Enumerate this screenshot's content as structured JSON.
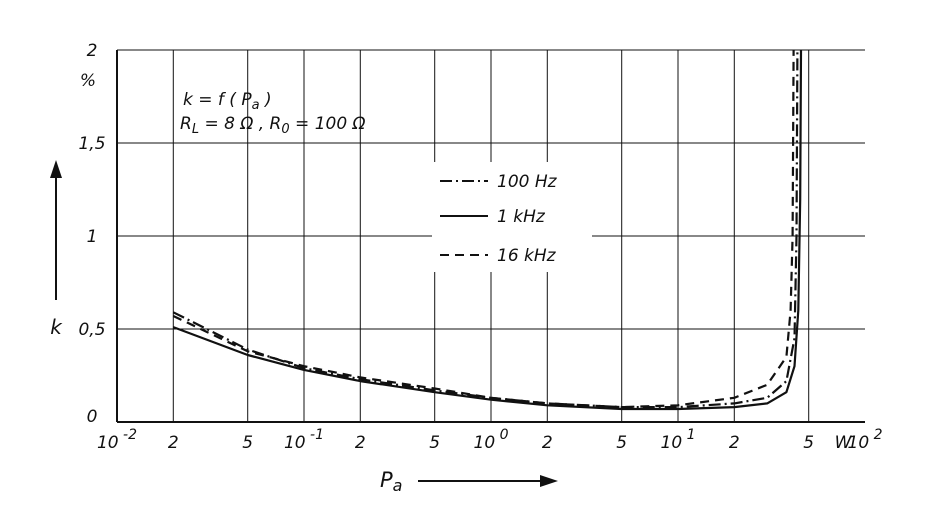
{
  "chart_data": {
    "type": "line",
    "x_scale": "log",
    "xlim": [
      0.01,
      100
    ],
    "ylim": [
      0,
      2
    ],
    "grid": true,
    "legend_position": "center",
    "ylabel": "k",
    "y_unit": "%",
    "xlabel": "Pa",
    "x_unit": "W",
    "annotations": [
      "k = f ( Pa )",
      "RL = 8 Ω , R0 = 100 Ω"
    ],
    "y_ticks": [
      "0",
      "0,5",
      "1",
      "1,5",
      "2"
    ],
    "x_ticks": [
      {
        "base": "10",
        "exp": "-2",
        "value": 0.01
      },
      {
        "base": "2",
        "exp": "",
        "value": 0.02
      },
      {
        "base": "5",
        "exp": "",
        "value": 0.05
      },
      {
        "base": "10",
        "exp": "-1",
        "value": 0.1
      },
      {
        "base": "2",
        "exp": "",
        "value": 0.2
      },
      {
        "base": "5",
        "exp": "",
        "value": 0.5
      },
      {
        "base": "10",
        "exp": "0",
        "value": 1
      },
      {
        "base": "2",
        "exp": "",
        "value": 2
      },
      {
        "base": "5",
        "exp": "",
        "value": 5
      },
      {
        "base": "10",
        "exp": "1",
        "value": 10
      },
      {
        "base": "2",
        "exp": "",
        "value": 20
      },
      {
        "base": "5",
        "exp": "",
        "value": 50
      },
      {
        "base": "10",
        "exp": "2",
        "value": 100
      }
    ],
    "series": [
      {
        "name": "100 Hz",
        "style": "dash-dot",
        "points": [
          [
            0.02,
            0.59
          ],
          [
            0.05,
            0.39
          ],
          [
            0.1,
            0.29
          ],
          [
            0.2,
            0.23
          ],
          [
            0.5,
            0.17
          ],
          [
            1,
            0.13
          ],
          [
            2,
            0.1
          ],
          [
            5,
            0.08
          ],
          [
            10,
            0.08
          ],
          [
            20,
            0.1
          ],
          [
            30,
            0.13
          ],
          [
            38,
            0.22
          ],
          [
            42,
            0.45
          ],
          [
            43,
            1.0
          ],
          [
            43.5,
            2.0
          ]
        ]
      },
      {
        "name": "1 kHz",
        "style": "solid",
        "points": [
          [
            0.02,
            0.51
          ],
          [
            0.05,
            0.36
          ],
          [
            0.1,
            0.28
          ],
          [
            0.2,
            0.22
          ],
          [
            0.5,
            0.16
          ],
          [
            1,
            0.12
          ],
          [
            2,
            0.09
          ],
          [
            5,
            0.07
          ],
          [
            10,
            0.07
          ],
          [
            20,
            0.08
          ],
          [
            30,
            0.1
          ],
          [
            38,
            0.16
          ],
          [
            42,
            0.3
          ],
          [
            44,
            0.6
          ],
          [
            45,
            1.2
          ],
          [
            45.5,
            2.0
          ]
        ]
      },
      {
        "name": "16 kHz",
        "style": "dashed",
        "points": [
          [
            0.02,
            0.57
          ],
          [
            0.05,
            0.38
          ],
          [
            0.1,
            0.3
          ],
          [
            0.2,
            0.24
          ],
          [
            0.5,
            0.18
          ],
          [
            1,
            0.13
          ],
          [
            2,
            0.1
          ],
          [
            5,
            0.08
          ],
          [
            10,
            0.09
          ],
          [
            20,
            0.13
          ],
          [
            30,
            0.2
          ],
          [
            38,
            0.35
          ],
          [
            40,
            0.6
          ],
          [
            41,
            1.0
          ],
          [
            41.5,
            2.0
          ]
        ]
      }
    ]
  }
}
